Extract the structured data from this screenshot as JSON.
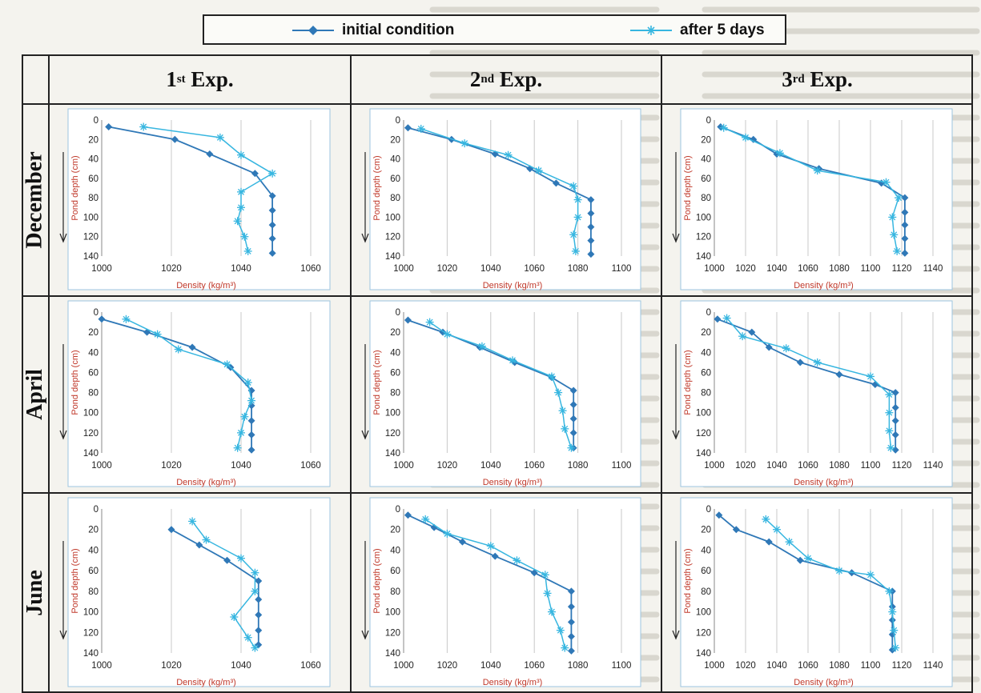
{
  "legend": {
    "series": [
      {
        "name": "initial condition",
        "color": "#2f78b7",
        "marker": "diamond"
      },
      {
        "name": "after 5 days",
        "color": "#37b6e0",
        "marker": "asterisk"
      }
    ]
  },
  "columns": [
    {
      "prefix": "1",
      "sup": "st",
      "suffix": " Exp."
    },
    {
      "prefix": "2",
      "sup": "nd",
      "suffix": " Exp."
    },
    {
      "prefix": "3",
      "sup": "rd",
      "suffix": " Exp."
    }
  ],
  "rows": [
    "December",
    "April",
    "June"
  ],
  "chart_data": [
    {
      "type": "line",
      "month": "December",
      "experiment": "1st Exp.",
      "ylabel": "Pond depth (cm)",
      "xlabel": "Density (kg/m³)",
      "xlim": [
        1000,
        1060
      ],
      "xticks": [
        1000,
        1020,
        1040,
        1060
      ],
      "ylim": [
        0,
        140
      ],
      "yticks": [
        0,
        20,
        40,
        60,
        80,
        100,
        120,
        140
      ],
      "y_inverted": true,
      "series": [
        {
          "name": "initial condition",
          "x": [
            1002,
            1021,
            1031,
            1044,
            1049,
            1049,
            1049,
            1049,
            1049
          ],
          "y": [
            7,
            20,
            35,
            55,
            78,
            93,
            108,
            122,
            137
          ]
        },
        {
          "name": "after 5 days",
          "x": [
            1012,
            1034,
            1040,
            1049,
            1040,
            1040,
            1039,
            1041,
            1042
          ],
          "y": [
            7,
            18,
            36,
            55,
            74,
            90,
            104,
            120,
            135
          ]
        }
      ]
    },
    {
      "type": "line",
      "month": "December",
      "experiment": "2nd Exp.",
      "ylabel": "Pond depth (cm)",
      "xlabel": "Density (kg/m³)",
      "xlim": [
        1000,
        1100
      ],
      "xticks": [
        1000,
        1020,
        1040,
        1060,
        1080,
        1100
      ],
      "ylim": [
        0,
        140
      ],
      "yticks": [
        0,
        20,
        40,
        60,
        80,
        100,
        120,
        140
      ],
      "y_inverted": true,
      "series": [
        {
          "name": "initial condition",
          "x": [
            1002,
            1022,
            1042,
            1058,
            1070,
            1086,
            1086,
            1086,
            1086,
            1086
          ],
          "y": [
            8,
            20,
            35,
            50,
            65,
            82,
            96,
            110,
            124,
            138
          ]
        },
        {
          "name": "after 5 days",
          "x": [
            1008,
            1028,
            1048,
            1062,
            1078,
            1080,
            1080,
            1078,
            1079
          ],
          "y": [
            9,
            24,
            36,
            52,
            68,
            82,
            100,
            118,
            135
          ]
        }
      ]
    },
    {
      "type": "line",
      "month": "December",
      "experiment": "3rd Exp.",
      "ylabel": "Pond depth (cm)",
      "xlabel": "Density (kg/m³)",
      "xlim": [
        1000,
        1140
      ],
      "xticks": [
        1000,
        1020,
        1040,
        1060,
        1080,
        1100,
        1120,
        1140
      ],
      "ylim": [
        0,
        140
      ],
      "yticks": [
        0,
        20,
        40,
        60,
        80,
        100,
        120,
        140
      ],
      "y_inverted": true,
      "series": [
        {
          "name": "initial condition",
          "x": [
            1004,
            1025,
            1040,
            1067,
            1107,
            1122,
            1122,
            1122,
            1122,
            1122
          ],
          "y": [
            7,
            20,
            35,
            50,
            65,
            80,
            95,
            108,
            122,
            137
          ]
        },
        {
          "name": "after 5 days",
          "x": [
            1006,
            1020,
            1042,
            1066,
            1110,
            1118,
            1114,
            1115,
            1117
          ],
          "y": [
            8,
            18,
            34,
            52,
            64,
            80,
            100,
            118,
            135
          ]
        }
      ]
    },
    {
      "type": "line",
      "month": "April",
      "experiment": "1st Exp.",
      "ylabel": "Pond depth (cm)",
      "xlabel": "Density (kg/m³)",
      "xlim": [
        1000,
        1060
      ],
      "xticks": [
        1000,
        1020,
        1040,
        1060
      ],
      "ylim": [
        0,
        140
      ],
      "yticks": [
        0,
        20,
        40,
        60,
        80,
        100,
        120,
        140
      ],
      "y_inverted": true,
      "series": [
        {
          "name": "initial condition",
          "x": [
            1000,
            1013,
            1026,
            1037,
            1043,
            1043,
            1043,
            1043,
            1043
          ],
          "y": [
            7,
            20,
            35,
            55,
            78,
            93,
            108,
            122,
            137
          ]
        },
        {
          "name": "after 5 days",
          "x": [
            1007,
            1016,
            1022,
            1036,
            1042,
            1043,
            1041,
            1040,
            1039
          ],
          "y": [
            7,
            22,
            37,
            52,
            70,
            88,
            104,
            120,
            135
          ]
        }
      ]
    },
    {
      "type": "line",
      "month": "April",
      "experiment": "2nd Exp.",
      "ylabel": "Pond depth (cm)",
      "xlabel": "Density (kg/m³)",
      "xlim": [
        1000,
        1100
      ],
      "xticks": [
        1000,
        1020,
        1040,
        1060,
        1080,
        1100
      ],
      "ylim": [
        0,
        140
      ],
      "yticks": [
        0,
        20,
        40,
        60,
        80,
        100,
        120,
        140
      ],
      "y_inverted": true,
      "series": [
        {
          "name": "initial condition",
          "x": [
            1002,
            1018,
            1035,
            1051,
            1068,
            1078,
            1078,
            1078,
            1078,
            1078
          ],
          "y": [
            8,
            20,
            35,
            50,
            65,
            78,
            92,
            106,
            120,
            135
          ]
        },
        {
          "name": "after 5 days",
          "x": [
            1012,
            1020,
            1036,
            1050,
            1068,
            1071,
            1073,
            1074,
            1077
          ],
          "y": [
            10,
            22,
            34,
            48,
            64,
            80,
            98,
            116,
            135
          ]
        }
      ]
    },
    {
      "type": "line",
      "month": "April",
      "experiment": "3rd Exp.",
      "ylabel": "Pond depth (cm)",
      "xlabel": "Density (kg/m³)",
      "xlim": [
        1000,
        1140
      ],
      "xticks": [
        1000,
        1020,
        1040,
        1060,
        1080,
        1100,
        1120,
        1140
      ],
      "ylim": [
        0,
        140
      ],
      "yticks": [
        0,
        20,
        40,
        60,
        80,
        100,
        120,
        140
      ],
      "y_inverted": true,
      "series": [
        {
          "name": "initial condition",
          "x": [
            1002,
            1024,
            1035,
            1055,
            1080,
            1103,
            1116,
            1116,
            1116,
            1116,
            1116
          ],
          "y": [
            7,
            20,
            35,
            50,
            62,
            72,
            80,
            95,
            108,
            122,
            137
          ]
        },
        {
          "name": "after 5 days",
          "x": [
            1008,
            1018,
            1046,
            1066,
            1100,
            1112,
            1112,
            1112,
            1113
          ],
          "y": [
            6,
            24,
            36,
            50,
            64,
            82,
            100,
            118,
            135
          ]
        }
      ]
    },
    {
      "type": "line",
      "month": "June",
      "experiment": "1st Exp.",
      "ylabel": "Pond depth (cm)",
      "xlabel": "Density (kg/m³)",
      "xlim": [
        1000,
        1060
      ],
      "xticks": [
        1000,
        1020,
        1040,
        1060
      ],
      "ylim": [
        0,
        140
      ],
      "yticks": [
        0,
        20,
        40,
        60,
        80,
        100,
        120,
        140
      ],
      "y_inverted": true,
      "series": [
        {
          "name": "initial condition",
          "x": [
            1020,
            1028,
            1036,
            1045,
            1045,
            1045,
            1045,
            1045
          ],
          "y": [
            20,
            35,
            50,
            70,
            88,
            103,
            118,
            132
          ]
        },
        {
          "name": "after 5 days",
          "x": [
            1026,
            1030,
            1040,
            1044,
            1044,
            1038,
            1042,
            1044
          ],
          "y": [
            12,
            30,
            48,
            62,
            80,
            105,
            125,
            135
          ]
        }
      ]
    },
    {
      "type": "line",
      "month": "June",
      "experiment": "2nd Exp.",
      "ylabel": "Pond depth (cm)",
      "xlabel": "Density (kg/m³)",
      "xlim": [
        1000,
        1100
      ],
      "xticks": [
        1000,
        1020,
        1040,
        1060,
        1080,
        1100
      ],
      "ylim": [
        0,
        140
      ],
      "yticks": [
        0,
        20,
        40,
        60,
        80,
        100,
        120,
        140
      ],
      "y_inverted": true,
      "series": [
        {
          "name": "initial condition",
          "x": [
            1002,
            1014,
            1027,
            1042,
            1060,
            1077,
            1077,
            1077,
            1077,
            1077
          ],
          "y": [
            6,
            18,
            32,
            46,
            62,
            80,
            95,
            110,
            124,
            138
          ]
        },
        {
          "name": "after 5 days",
          "x": [
            1010,
            1020,
            1040,
            1052,
            1065,
            1066,
            1068,
            1072,
            1074
          ],
          "y": [
            10,
            24,
            36,
            50,
            64,
            82,
            100,
            118,
            135
          ]
        }
      ]
    },
    {
      "type": "line",
      "month": "June",
      "experiment": "3rd Exp.",
      "ylabel": "Pond depth (cm)",
      "xlabel": "Density (kg/m³)",
      "xlim": [
        1000,
        1140
      ],
      "xticks": [
        1000,
        1020,
        1040,
        1060,
        1080,
        1100,
        1120,
        1140
      ],
      "ylim": [
        0,
        140
      ],
      "yticks": [
        0,
        20,
        40,
        60,
        80,
        100,
        120,
        140
      ],
      "y_inverted": true,
      "series": [
        {
          "name": "initial condition",
          "x": [
            1003,
            1014,
            1035,
            1055,
            1088,
            1114,
            1114,
            1114,
            1114,
            1114
          ],
          "y": [
            6,
            20,
            32,
            50,
            62,
            80,
            95,
            108,
            122,
            137
          ]
        },
        {
          "name": "after 5 days",
          "x": [
            1033,
            1040,
            1048,
            1060,
            1080,
            1100,
            1112,
            1114,
            1115,
            1116
          ],
          "y": [
            10,
            20,
            32,
            48,
            60,
            64,
            80,
            100,
            118,
            135
          ]
        }
      ]
    }
  ]
}
